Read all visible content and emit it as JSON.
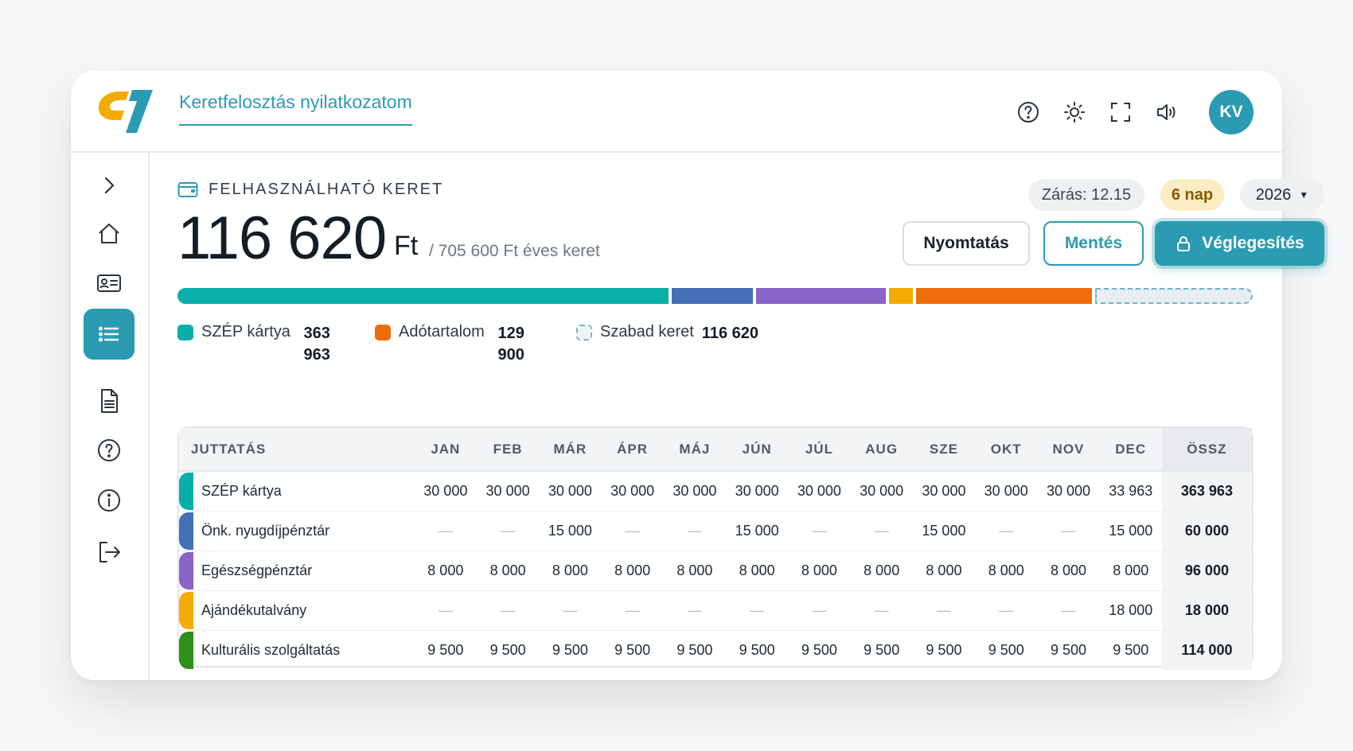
{
  "header": {
    "title": "Keretfelosztás nyilatkozatom",
    "avatar_initials": "KV",
    "icons": [
      "help-icon",
      "sun-icon",
      "fullscreen-icon",
      "volume-icon"
    ]
  },
  "sidebar": {
    "items": [
      {
        "name": "expand",
        "icon": "chevron-right-icon",
        "active": false
      },
      {
        "name": "home",
        "icon": "home-icon",
        "active": false
      },
      {
        "name": "profile",
        "icon": "id-card-icon",
        "active": false
      },
      {
        "name": "list",
        "icon": "list-icon",
        "active": true
      },
      {
        "name": "documents",
        "icon": "document-icon",
        "active": false
      },
      {
        "name": "help",
        "icon": "help-icon",
        "active": false
      },
      {
        "name": "info",
        "icon": "info-icon",
        "active": false
      },
      {
        "name": "logout",
        "icon": "logout-icon",
        "active": false
      }
    ]
  },
  "summary": {
    "label": "FELHASZNÁLHATÓ KERET",
    "amount": "116 620",
    "unit": "Ft",
    "annual": "/ 705 600 Ft éves keret",
    "closing": "Zárás: 12.15",
    "days_left": "6 nap",
    "year": "2026"
  },
  "actions": {
    "print": "Nyomtatás",
    "save": "Mentés",
    "finalize": "Véglegesítés"
  },
  "budget_bar": {
    "total": 705600,
    "segments": [
      {
        "name": "SZÉP kártya",
        "value": 363963,
        "color": "#08afaa"
      },
      {
        "name": "Önk. nyugdíjpénztár",
        "value": 60000,
        "color": "#4470b6"
      },
      {
        "name": "Egészségpénztár",
        "value": 96000,
        "color": "#8a63c9"
      },
      {
        "name": "Ajándékutalvány",
        "value": 18000,
        "color": "#f4ab00"
      },
      {
        "name": "Adótartalom",
        "value": 129900,
        "color": "#ec6d0a"
      },
      {
        "name": "Szabad keret",
        "value": 116620,
        "color": "free"
      }
    ]
  },
  "legend": [
    {
      "label": "SZÉP kártya",
      "value": "363 963",
      "color": "#08afaa"
    },
    {
      "label": "Adótartalom",
      "value": "129 900",
      "color": "#ec6d0a"
    },
    {
      "label": "Szabad keret",
      "value": "116 620",
      "color": "dashed"
    }
  ],
  "table": {
    "columns": [
      "JUTTATÁS",
      "JAN",
      "FEB",
      "MÁR",
      "ÁPR",
      "MÁJ",
      "JÚN",
      "JÚL",
      "AUG",
      "SZE",
      "OKT",
      "NOV",
      "DEC",
      "ÖSSZ"
    ],
    "rows": [
      {
        "name": "SZÉP kártya",
        "color": "#08afaa",
        "months": [
          "30 000",
          "30 000",
          "30 000",
          "30 000",
          "30 000",
          "30 000",
          "30 000",
          "30 000",
          "30 000",
          "30 000",
          "30 000",
          "33 963"
        ],
        "total": "363 963"
      },
      {
        "name": "Önk. nyugdíjpénztár",
        "color": "#4470b6",
        "months": [
          "—",
          "—",
          "15 000",
          "—",
          "—",
          "15 000",
          "—",
          "—",
          "15 000",
          "—",
          "—",
          "15 000"
        ],
        "total": "60 000"
      },
      {
        "name": "Egészségpénztár",
        "color": "#8a63c9",
        "months": [
          "8 000",
          "8 000",
          "8 000",
          "8 000",
          "8 000",
          "8 000",
          "8 000",
          "8 000",
          "8 000",
          "8 000",
          "8 000",
          "8 000"
        ],
        "total": "96 000"
      },
      {
        "name": "Ajándékutalvány",
        "color": "#f4ab00",
        "months": [
          "—",
          "—",
          "—",
          "—",
          "—",
          "—",
          "—",
          "—",
          "—",
          "—",
          "—",
          "18 000"
        ],
        "total": "18 000"
      },
      {
        "name": "Kulturális szolgáltatás",
        "color": "#2e8f19",
        "months": [
          "9 500",
          "9 500",
          "9 500",
          "9 500",
          "9 500",
          "9 500",
          "9 500",
          "9 500",
          "9 500",
          "9 500",
          "9 500",
          "9 500"
        ],
        "total": "114 000"
      }
    ]
  }
}
